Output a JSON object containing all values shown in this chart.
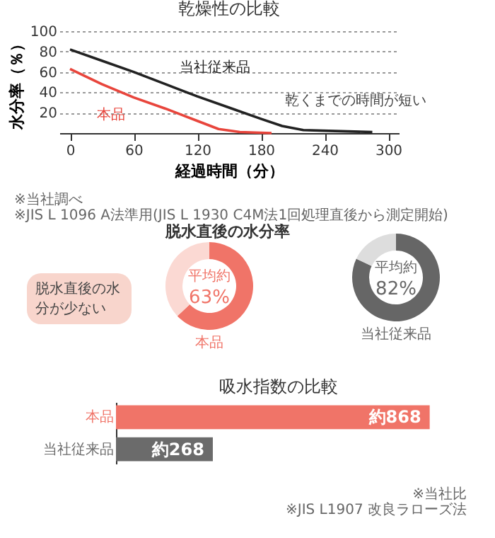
{
  "chart_data": [
    {
      "type": "line",
      "title": "乾燥性の比較",
      "xlabel": "経過時間（分）",
      "ylabel": "水分率（％）",
      "xlim": [
        -10,
        310
      ],
      "xticks": [
        0,
        60,
        120,
        180,
        240,
        300
      ],
      "ylim": [
        0,
        100
      ],
      "yticks": [
        20,
        40,
        60,
        80,
        100
      ],
      "grid": "y",
      "series": [
        {
          "name": "当社従来品",
          "color": "#222222",
          "x": [
            0,
            30,
            60,
            90,
            120,
            150,
            180,
            200,
            220,
            250,
            285
          ],
          "values": [
            82,
            71,
            60,
            48,
            36,
            25,
            14,
            7,
            3,
            2,
            1
          ]
        },
        {
          "name": "本品",
          "color": "#e8453c",
          "x": [
            0,
            30,
            60,
            90,
            120,
            140,
            160,
            190
          ],
          "values": [
            63,
            48,
            35,
            24,
            12,
            4,
            1,
            0
          ]
        }
      ],
      "annotations": [
        {
          "text": "乾くまでの時間が短い",
          "x": 200,
          "y": 7
        },
        "※当社調べ",
        "※JIS L 1096 A法準用(JIS L 1930 C4M法1回処理直後から測定開始)"
      ]
    },
    {
      "type": "donut",
      "title": "脱水直後の水分率",
      "xlabel": "本品",
      "categories": [
        null,
        null
      ],
      "values": [
        63,
        37
      ],
      "colors": [
        "#f07468",
        "#fbd9d3"
      ],
      "value_labels": [
        "63%",
        null
      ],
      "annotations": [
        "平均約",
        "脱水直後の水分が少ない"
      ]
    },
    {
      "type": "donut",
      "xlabel": "当社従来品",
      "categories": [
        null,
        null
      ],
      "values": [
        82,
        18
      ],
      "colors": [
        "#666666",
        "#dddddd"
      ],
      "value_labels": [
        "82%",
        null
      ],
      "annotations": [
        "平均約"
      ]
    },
    {
      "type": "bar",
      "title": "吸水指数の比較",
      "orientation": "horizontal",
      "categories": [
        "本品",
        "当社従来品"
      ],
      "values": [
        868,
        268
      ],
      "colors": [
        "#f07468",
        "#6b6b6b"
      ],
      "value_labels": [
        "約868",
        "約268"
      ],
      "annotations": [
        "※当社比",
        "※JIS L1907 改良ラローズ法"
      ]
    }
  ]
}
